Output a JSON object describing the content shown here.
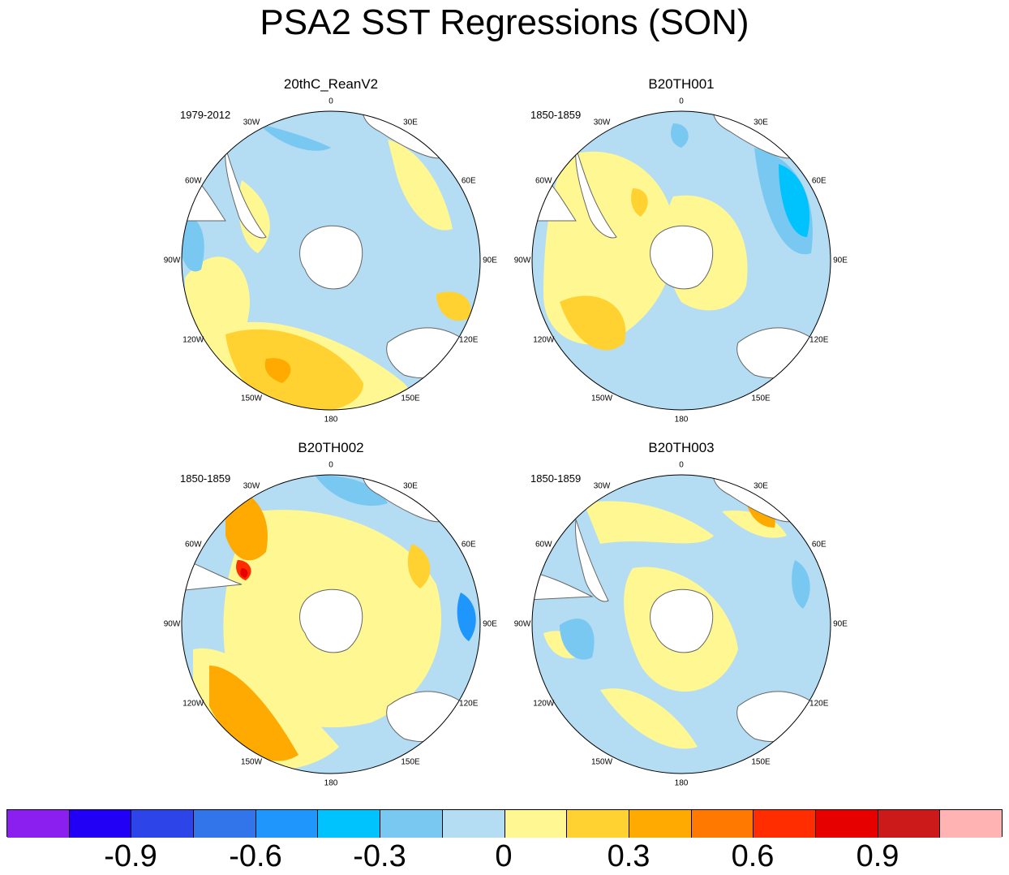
{
  "title": "PSA2 SST Regressions (SON)",
  "colors": {
    "land": "#ffffff",
    "coast": "#666666",
    "palette": [
      "#8a1ff0",
      "#2200f5",
      "#2c44e8",
      "#3275ea",
      "#1e96fc",
      "#00c3fd",
      "#79c8f2",
      "#b4dcf3",
      "#fff892",
      "#ffd232",
      "#ffaa00",
      "#ff7800",
      "#ff2d00",
      "#e60000",
      "#cc1a1a",
      "#ffb3b3"
    ]
  },
  "panels": [
    {
      "id": "20thC_ReanV2",
      "title": "20thC_ReanV2",
      "period": "1979-2012"
    },
    {
      "id": "B20TH001",
      "title": "B20TH001",
      "period": "1850-1859"
    },
    {
      "id": "B20TH002",
      "title": "B20TH002",
      "period": "1850-1859"
    },
    {
      "id": "B20TH003",
      "title": "B20TH003",
      "period": "1850-1859"
    }
  ],
  "lon_labels": [
    "0",
    "30E",
    "60E",
    "90E",
    "120E",
    "150E",
    "180",
    "150W",
    "120W",
    "90W",
    "60W",
    "30W"
  ],
  "colorbar": {
    "labels": [
      "-0.9",
      "-0.6",
      "-0.3",
      "0",
      "0.3",
      "0.6",
      "0.9"
    ]
  }
}
